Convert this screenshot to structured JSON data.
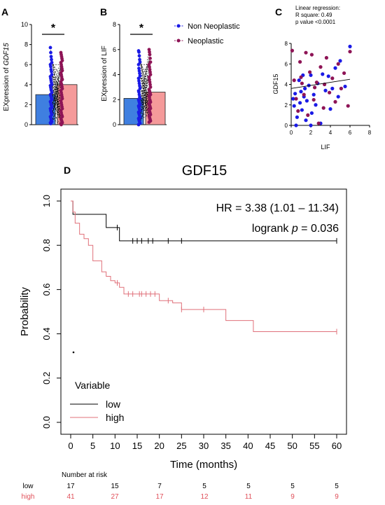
{
  "chart_data": [
    {
      "panel": "A",
      "type": "bar",
      "ylabel_prefix": "EXpression of ",
      "ylabel_gene": "GDF15",
      "ylim": [
        0,
        10
      ],
      "yticks": [
        "0",
        "2",
        "4",
        "6",
        "8",
        "10"
      ],
      "categories": [
        "Non Neoplastic",
        "Neoplastic"
      ],
      "values": [
        3.0,
        4.0
      ],
      "colors": [
        "#3f7fe0",
        "#f59a9a"
      ],
      "significance": "*",
      "points_non": [
        7.7,
        7.2,
        6.8,
        6.5,
        6.2,
        6.0,
        5.8,
        5.5,
        5.3,
        5.0,
        4.8,
        4.6,
        4.4,
        4.2,
        4.0,
        3.9,
        3.7,
        3.5,
        3.4,
        3.2,
        3.0,
        2.9,
        2.8,
        2.6,
        2.5,
        2.3,
        2.2,
        2.0,
        1.9,
        1.7,
        1.6,
        1.4,
        1.3,
        1.1,
        1.0,
        0.8,
        0.7,
        0.5,
        0.4,
        0.3,
        0.2,
        0.1
      ],
      "points_neo": [
        7.2,
        7.0,
        6.8,
        6.6,
        6.4,
        6.2,
        6.0,
        5.8,
        5.6,
        5.4,
        5.2,
        5.0,
        4.8,
        4.6,
        4.5,
        4.3,
        4.1,
        4.0,
        3.8,
        3.6,
        3.4,
        3.2,
        3.0,
        2.8,
        2.6,
        2.4,
        2.2,
        2.0,
        1.8,
        1.6,
        1.4,
        1.2,
        1.0,
        0.9,
        0.8,
        0.6,
        0.5,
        0.4,
        0.3,
        0.2,
        0.1,
        0.0
      ]
    },
    {
      "panel": "B",
      "type": "bar",
      "ylabel": "EXpression of LIF",
      "ylim": [
        0,
        8
      ],
      "yticks": [
        "0",
        "2",
        "4",
        "6",
        "8"
      ],
      "categories": [
        "Non Neoplastic",
        "Neoplastic"
      ],
      "values": [
        2.1,
        2.6
      ],
      "colors": [
        "#3f7fe0",
        "#f59a9a"
      ],
      "significance": "*",
      "points_non": [
        5.9,
        5.8,
        5.5,
        5.2,
        5.0,
        4.8,
        4.5,
        4.3,
        4.1,
        3.9,
        3.7,
        3.5,
        3.3,
        3.1,
        2.9,
        2.7,
        2.6,
        2.4,
        2.2,
        2.1,
        2.0,
        1.9,
        1.8,
        1.7,
        1.6,
        1.5,
        1.4,
        1.3,
        1.2,
        1.1,
        1.0,
        0.9,
        0.8,
        0.7,
        0.6,
        0.5,
        0.4,
        0.3,
        0.2,
        0.1,
        0.0
      ],
      "points_neo": [
        6.0,
        5.8,
        5.6,
        5.3,
        5.0,
        4.8,
        4.6,
        4.4,
        4.2,
        4.0,
        3.8,
        3.6,
        3.4,
        3.2,
        3.0,
        2.8,
        2.7,
        2.6,
        2.5,
        2.4,
        2.3,
        2.2,
        2.0,
        1.9,
        1.8,
        1.7,
        1.6,
        1.5,
        1.4,
        1.3,
        1.2,
        1.1,
        1.0,
        0.9,
        0.8,
        0.7,
        0.6,
        0.5,
        0.4,
        0.3,
        0.2
      ]
    },
    {
      "panel": "C",
      "type": "scatter",
      "title_lines": [
        "Linear regression:",
        "R square: 0.49",
        "p value <0.0001"
      ],
      "xlabel": "LIF",
      "ylabel": "GDF15",
      "xlim": [
        0,
        8
      ],
      "ylim": [
        0,
        8
      ],
      "xticks": [
        "0",
        "2",
        "4",
        "6",
        "8"
      ],
      "yticks": [
        "0",
        "2",
        "4",
        "6",
        "8"
      ],
      "regression": [
        [
          0,
          3.6
        ],
        [
          6,
          4.5
        ]
      ],
      "series": [
        {
          "name": "Non Neoplastic",
          "color": "#1a1ae6",
          "points": [
            [
              0.2,
              2.6
            ],
            [
              0.3,
              1.9
            ],
            [
              0.4,
              3.1
            ],
            [
              0.6,
              0.8
            ],
            [
              0.8,
              4.4
            ],
            [
              0.9,
              2.2
            ],
            [
              1.0,
              3.3
            ],
            [
              1.1,
              1.5
            ],
            [
              1.2,
              4.9
            ],
            [
              1.3,
              2.8
            ],
            [
              1.4,
              3.6
            ],
            [
              1.5,
              0.5
            ],
            [
              1.6,
              2.4
            ],
            [
              1.8,
              3.9
            ],
            [
              2.0,
              4.9
            ],
            [
              2.1,
              1.2
            ],
            [
              2.3,
              3.0
            ],
            [
              2.5,
              2.0
            ],
            [
              2.7,
              4.1
            ],
            [
              3.0,
              0.2
            ],
            [
              3.2,
              5.0
            ],
            [
              3.5,
              3.4
            ],
            [
              3.8,
              4.8
            ],
            [
              4.0,
              1.6
            ],
            [
              4.2,
              3.6
            ],
            [
              4.5,
              5.6
            ],
            [
              4.8,
              2.8
            ],
            [
              5.0,
              6.3
            ],
            [
              5.5,
              3.8
            ],
            [
              6.0,
              7.7
            ],
            [
              2.0,
              0.0
            ],
            [
              0.5,
              0.0
            ]
          ]
        },
        {
          "name": "Neoplastic",
          "color": "#8e1456",
          "points": [
            [
              0.1,
              7.3
            ],
            [
              0.3,
              4.4
            ],
            [
              0.5,
              2.6
            ],
            [
              0.7,
              1.4
            ],
            [
              0.9,
              6.2
            ],
            [
              1.1,
              4.1
            ],
            [
              1.3,
              3.0
            ],
            [
              1.5,
              7.1
            ],
            [
              1.7,
              1.0
            ],
            [
              1.9,
              5.2
            ],
            [
              2.1,
              6.9
            ],
            [
              2.3,
              2.5
            ],
            [
              2.6,
              4.2
            ],
            [
              2.8,
              0.2
            ],
            [
              3.0,
              5.7
            ],
            [
              3.3,
              1.7
            ],
            [
              3.6,
              6.6
            ],
            [
              3.9,
              3.2
            ],
            [
              4.2,
              4.6
            ],
            [
              4.5,
              2.3
            ],
            [
              4.8,
              6.0
            ],
            [
              5.1,
              3.6
            ],
            [
              5.4,
              5.1
            ],
            [
              5.8,
              1.9
            ],
            [
              6.0,
              7.2
            ],
            [
              1.0,
              4.7
            ],
            [
              2.4,
              3.7
            ],
            [
              3.4,
              4.0
            ]
          ]
        }
      ]
    },
    {
      "panel": "D",
      "type": "line",
      "title": "GDF15",
      "xlabel": "Time (months)",
      "ylabel": "Probability",
      "xlim": [
        0,
        60
      ],
      "ylim": [
        0,
        1
      ],
      "xticks": [
        "0",
        "5",
        "10",
        "15",
        "20",
        "25",
        "30",
        "35",
        "40",
        "45",
        "50",
        "55",
        "60"
      ],
      "yticks": [
        "0.0",
        "0.2",
        "0.4",
        "0.6",
        "0.8",
        "1.0"
      ],
      "annotation_hr": "HR = 3.38 (1.01 – 11.34)",
      "annotation_logrank_prefix": "logrank ",
      "annotation_logrank_p": "p",
      "annotation_logrank_suffix": " = 0.036",
      "series": [
        {
          "name": "low",
          "color": "#000000",
          "steps": [
            [
              0,
              1.0
            ],
            [
              0.5,
              0.94
            ],
            [
              8,
              0.88
            ],
            [
              11,
              0.82
            ],
            [
              60,
              0.82
            ]
          ],
          "censor": [
            10.5,
            14,
            15,
            16,
            17.5,
            18.5,
            22,
            25,
            60
          ]
        },
        {
          "name": "high",
          "color": "#e0707a",
          "steps": [
            [
              0,
              1.0
            ],
            [
              0.5,
              0.95
            ],
            [
              1,
              0.9
            ],
            [
              2,
              0.85
            ],
            [
              3,
              0.83
            ],
            [
              4,
              0.8
            ],
            [
              5,
              0.73
            ],
            [
              7,
              0.68
            ],
            [
              8,
              0.66
            ],
            [
              9,
              0.64
            ],
            [
              10,
              0.63
            ],
            [
              11,
              0.61
            ],
            [
              12,
              0.58
            ],
            [
              20,
              0.55
            ],
            [
              23,
              0.54
            ],
            [
              25,
              0.51
            ],
            [
              35,
              0.46
            ],
            [
              41,
              0.46
            ],
            [
              41.2,
              0.41
            ],
            [
              60,
              0.41
            ]
          ],
          "censor": [
            10.5,
            13,
            14,
            15.5,
            16,
            17,
            18,
            19,
            22,
            25,
            30,
            60
          ]
        }
      ],
      "legend_title": "Variable",
      "legend_items": [
        "low",
        "high"
      ]
    }
  ],
  "panel_letters": {
    "a": "A",
    "b": "B",
    "c": "C",
    "d": "D"
  },
  "bar_legend": {
    "non": "Non Neoplastic",
    "neo": "Neoplastic"
  },
  "risk_table": {
    "title": "Number at risk",
    "rows": [
      {
        "label": "low",
        "color": "#000000",
        "values": [
          "17",
          "15",
          "7",
          "5",
          "5",
          "5",
          "5"
        ]
      },
      {
        "label": "high",
        "color": "#e0505a",
        "values": [
          "41",
          "27",
          "17",
          "12",
          "11",
          "9",
          "9"
        ]
      }
    ]
  }
}
